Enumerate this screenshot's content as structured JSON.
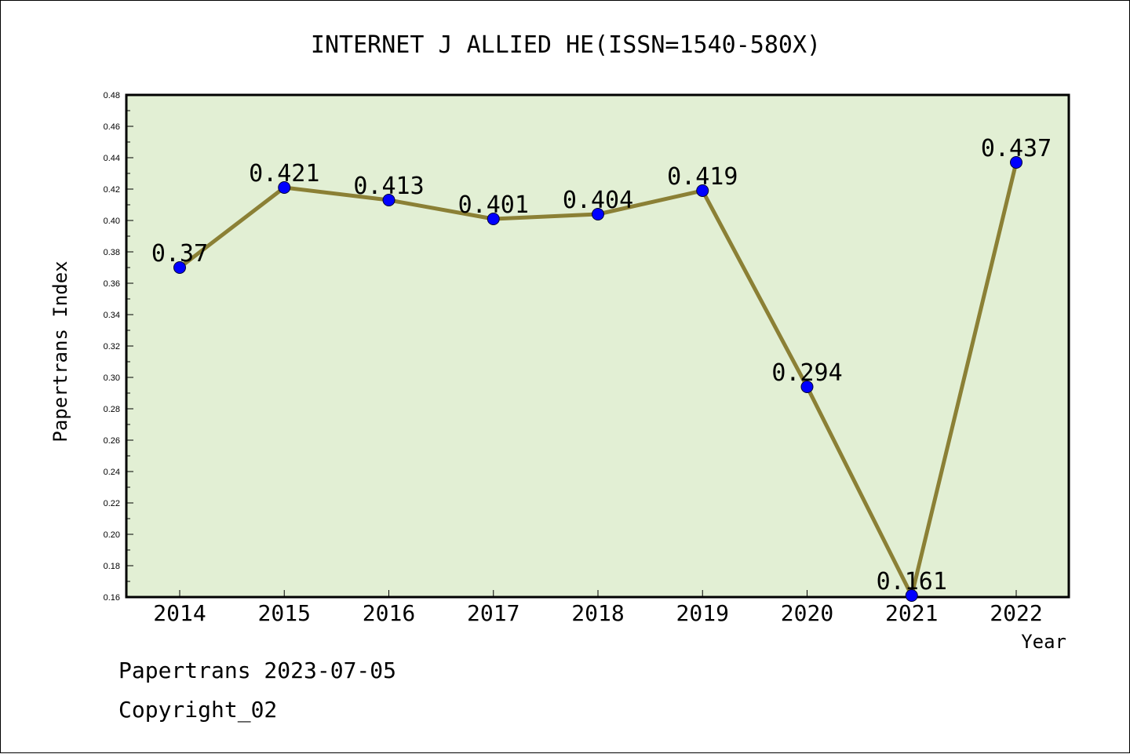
{
  "chart_data": {
    "type": "line",
    "title": "INTERNET J ALLIED HE(ISSN=1540-580X)",
    "xlabel": "Year",
    "ylabel": "Papertrans Index",
    "ylim": [
      0.16,
      0.48
    ],
    "y_ticks": [
      "0.16",
      "0.18",
      "0.20",
      "0.22",
      "0.24",
      "0.26",
      "0.28",
      "0.30",
      "0.32",
      "0.34",
      "0.36",
      "0.38",
      "0.40",
      "0.42",
      "0.44",
      "0.46",
      "0.48"
    ],
    "categories": [
      "2014",
      "2015",
      "2016",
      "2017",
      "2018",
      "2019",
      "2020",
      "2021",
      "2022"
    ],
    "values": [
      0.37,
      0.421,
      0.413,
      0.401,
      0.404,
      0.419,
      0.294,
      0.161,
      0.437
    ],
    "data_labels": [
      "0.37",
      "0.421",
      "0.413",
      "0.401",
      "0.404",
      "0.419",
      "0.294",
      "0.161",
      "0.437"
    ],
    "grid": false,
    "colors": {
      "plot_bg": "#e2efd4",
      "line": "#8b8035",
      "marker": "#0000ff"
    }
  },
  "footer": {
    "line1": "Papertrans 2023-07-05",
    "line2": "Copyright_02"
  }
}
